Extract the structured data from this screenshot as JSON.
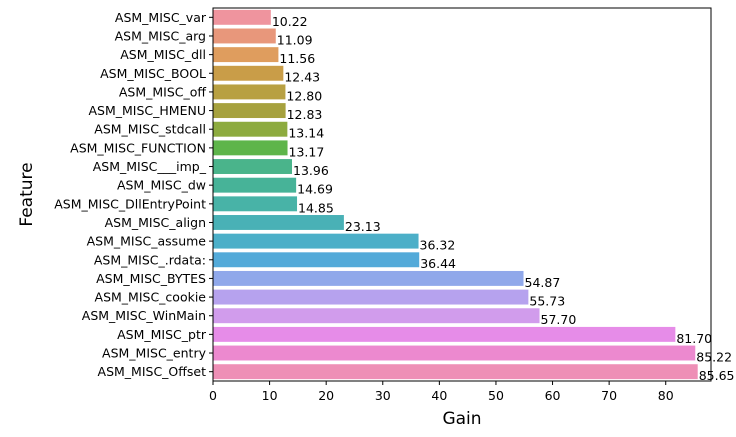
{
  "chart_data": {
    "type": "bar",
    "orientation": "horizontal",
    "xlabel": "Gain",
    "ylabel": "Feature",
    "xlim": [
      0,
      88
    ],
    "xticks": [
      0,
      10,
      20,
      30,
      40,
      50,
      60,
      70,
      80
    ],
    "grid": false,
    "categories": [
      "ASM_MISC_var",
      "ASM_MISC_arg",
      "ASM_MISC_dll",
      "ASM_MISC_BOOL",
      "ASM_MISC_off",
      "ASM_MISC_HMENU",
      "ASM_MISC_stdcall",
      "ASM_MISC_FUNCTION",
      "ASM_MISC___imp_",
      "ASM_MISC_dw",
      "ASM_MISC_DllEntryPoint",
      "ASM_MISC_align",
      "ASM_MISC_assume",
      "ASM_MISC_.rdata:",
      "ASM_MISC_BYTES",
      "ASM_MISC_cookie",
      "ASM_MISC_WinMain",
      "ASM_MISC_ptr",
      "ASM_MISC_entry",
      "ASM_MISC_Offset"
    ],
    "values": [
      10.22,
      11.09,
      11.56,
      12.43,
      12.8,
      12.83,
      13.14,
      13.17,
      13.96,
      14.69,
      14.85,
      23.13,
      36.32,
      36.44,
      54.87,
      55.73,
      57.7,
      81.7,
      85.22,
      85.65
    ],
    "value_labels": [
      "10.22",
      "11.09",
      "11.56",
      "12.43",
      "12.80",
      "12.83",
      "13.14",
      "13.17",
      "13.96",
      "14.69",
      "14.85",
      "23.13",
      "36.32",
      "36.44",
      "54.87",
      "55.73",
      "57.70",
      "81.70",
      "85.22",
      "85.65"
    ],
    "colors": [
      "#ef949e",
      "#e8977b",
      "#df9d5e",
      "#c99d48",
      "#b8a042",
      "#a6a13e",
      "#8dab3f",
      "#5eb54a",
      "#4ab48b",
      "#47b398",
      "#48b3a7",
      "#49b1b6",
      "#4cafc8",
      "#53aad9",
      "#90a8ea",
      "#b6a2ee",
      "#d19cec",
      "#e68ce8",
      "#ec89cf",
      "#ee8fb6"
    ]
  }
}
